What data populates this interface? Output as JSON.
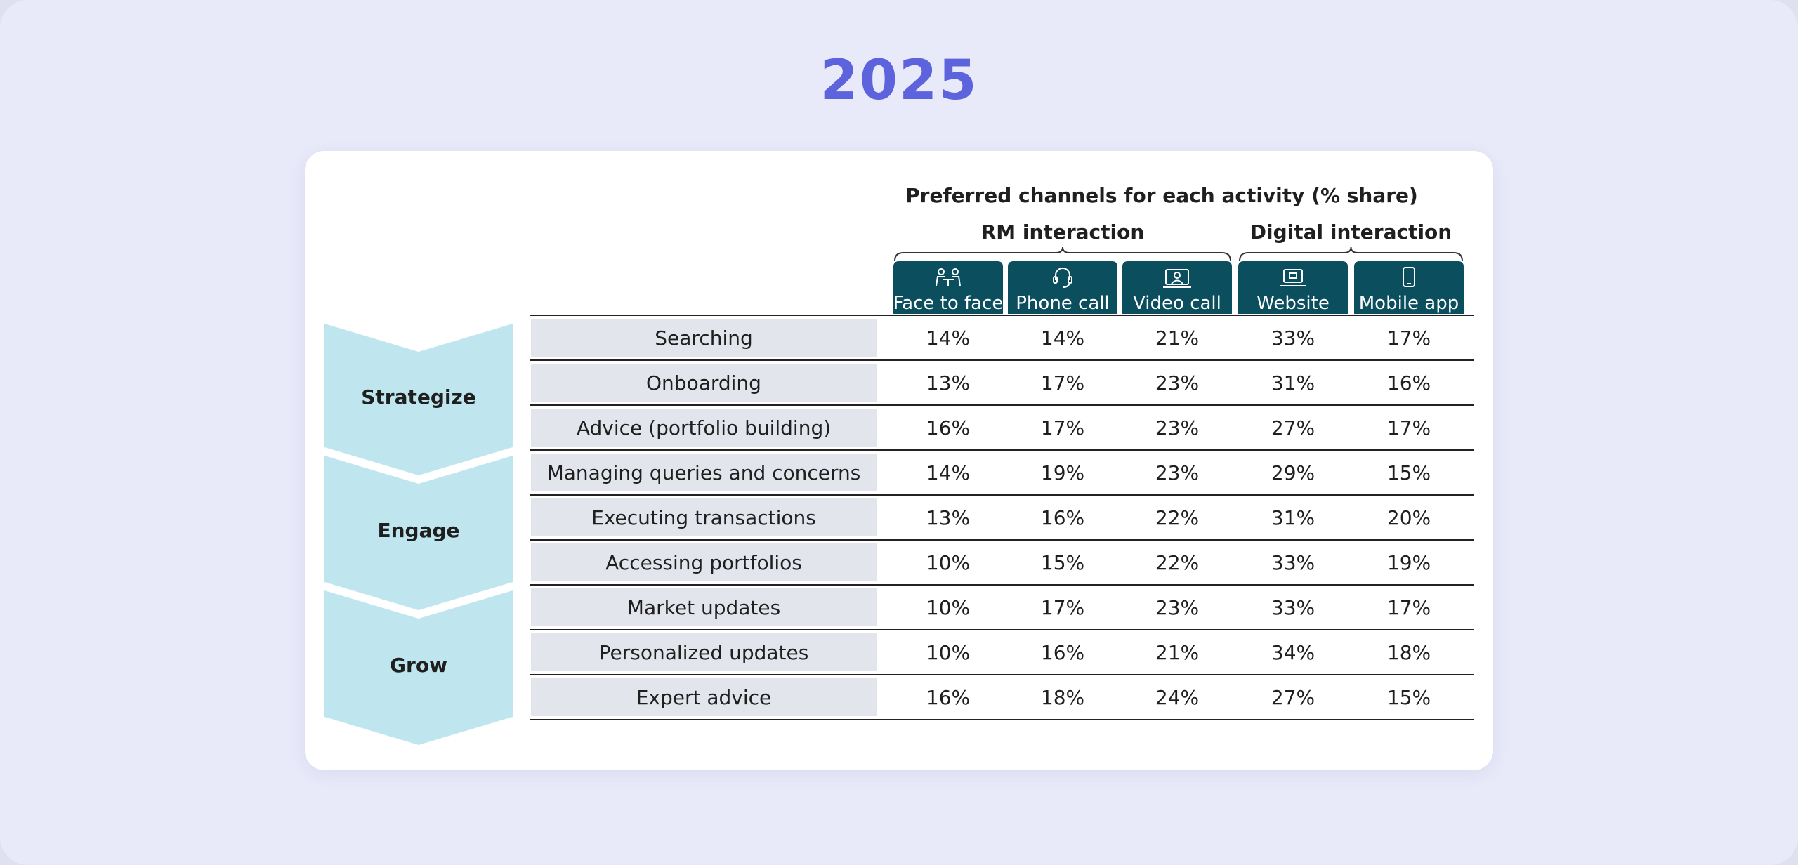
{
  "page": {
    "year": "2025"
  },
  "chart_data": {
    "type": "table",
    "title": "Preferred channels for each activity (% share)",
    "groups": [
      {
        "label": "RM interaction",
        "channels": [
          "Face to face",
          "Phone call",
          "Video call"
        ]
      },
      {
        "label": "Digital interaction",
        "channels": [
          "Website",
          "Mobile app"
        ]
      }
    ],
    "columns": [
      "Face to face",
      "Phone call",
      "Video call",
      "Website",
      "Mobile app"
    ],
    "column_icons": [
      "meeting-icon",
      "headset-icon",
      "video-call-icon",
      "laptop-icon",
      "mobile-phone-icon"
    ],
    "stages": [
      {
        "label": "Strategize",
        "rows": [
          0,
          1,
          2
        ]
      },
      {
        "label": "Engage",
        "rows": [
          3,
          4,
          5
        ]
      },
      {
        "label": "Grow",
        "rows": [
          6,
          7,
          8
        ]
      }
    ],
    "rows": [
      {
        "activity": "Searching",
        "values": [
          "14%",
          "14%",
          "21%",
          "33%",
          "17%"
        ]
      },
      {
        "activity": "Onboarding",
        "values": [
          "13%",
          "17%",
          "23%",
          "31%",
          "16%"
        ]
      },
      {
        "activity": "Advice (portfolio building)",
        "values": [
          "16%",
          "17%",
          "23%",
          "27%",
          "17%"
        ]
      },
      {
        "activity": "Managing queries and concerns",
        "values": [
          "14%",
          "19%",
          "23%",
          "29%",
          "15%"
        ]
      },
      {
        "activity": "Executing transactions",
        "values": [
          "13%",
          "16%",
          "22%",
          "31%",
          "20%"
        ]
      },
      {
        "activity": "Accessing portfolios",
        "values": [
          "10%",
          "15%",
          "22%",
          "33%",
          "19%"
        ]
      },
      {
        "activity": "Market updates",
        "values": [
          "10%",
          "17%",
          "23%",
          "33%",
          "17%"
        ]
      },
      {
        "activity": "Personalized updates",
        "values": [
          "10%",
          "16%",
          "21%",
          "34%",
          "18%"
        ]
      },
      {
        "activity": "Expert advice",
        "values": [
          "16%",
          "18%",
          "24%",
          "27%",
          "15%"
        ]
      }
    ],
    "colors": {
      "header": "#0b4f5e",
      "header_text": "#ffffff",
      "chevron": "#bfe6ef",
      "label_bg": "#e3e5ec",
      "line": "#222222",
      "text": "#1f1f1f"
    }
  }
}
